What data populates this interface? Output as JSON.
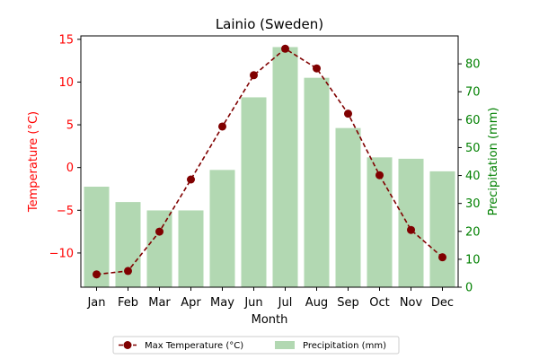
{
  "chart_data": {
    "type": "bar+line",
    "title": "Lainio (Sweden)",
    "xlabel": "Month",
    "categories": [
      "Jan",
      "Feb",
      "Mar",
      "Apr",
      "May",
      "Jun",
      "Jul",
      "Aug",
      "Sep",
      "Oct",
      "Nov",
      "Dec"
    ],
    "y_left": {
      "label": "Temperature (°C)",
      "color": "#ff0000",
      "ylim": [
        -14,
        15.4
      ],
      "ticks": [
        -10,
        -5,
        0,
        5,
        10,
        15
      ]
    },
    "y_right": {
      "label": "Precipitation (mm)",
      "color": "#008000",
      "ylim": [
        0,
        90
      ],
      "ticks": [
        0,
        10,
        20,
        30,
        40,
        50,
        60,
        70,
        80
      ]
    },
    "series": [
      {
        "name": "Max Temperature (°C)",
        "type": "line",
        "axis": "left",
        "color": "#800000",
        "values": [
          -12.5,
          -12.1,
          -7.5,
          -1.4,
          4.8,
          10.8,
          13.9,
          11.6,
          6.3,
          -0.9,
          -7.3,
          -10.5
        ]
      },
      {
        "name": "Precipitation (mm)",
        "type": "bar",
        "axis": "right",
        "color": "#b2d8b2",
        "values": [
          36,
          30.5,
          27.5,
          27.5,
          42,
          68,
          86,
          75,
          57,
          46.5,
          46,
          41.5
        ]
      }
    ],
    "legend": "bottom-center"
  }
}
